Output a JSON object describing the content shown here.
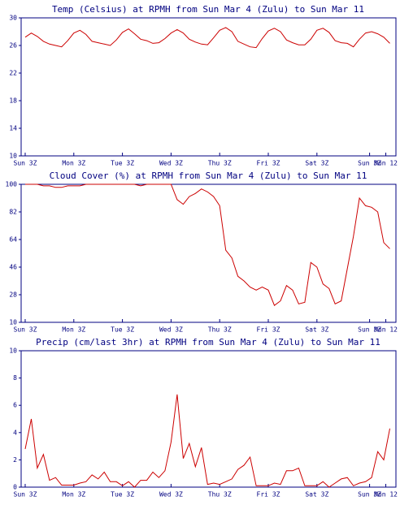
{
  "chart_data": [
    {
      "type": "line",
      "title": "Temp (Celsius) at RPMH from Sun Mar  4 (Zulu) to Sun Mar 11",
      "x": [
        0,
        3,
        6,
        9,
        12,
        15,
        18,
        21,
        24,
        27,
        30,
        33,
        36,
        39,
        42,
        45,
        48,
        51,
        54,
        57,
        60,
        63,
        66,
        69,
        72,
        75,
        78,
        81,
        84,
        87,
        90,
        93,
        96,
        99,
        102,
        105,
        108,
        111,
        114,
        117,
        120,
        123,
        126,
        129,
        132,
        135,
        138,
        141,
        144,
        147,
        150,
        153,
        156,
        159,
        162,
        165,
        168,
        171,
        174,
        177,
        180
      ],
      "series": [
        {
          "name": "Temp",
          "color": "#cc0000",
          "values": [
            27.2,
            27.8,
            27.3,
            26.6,
            26.2,
            26.0,
            25.8,
            26.7,
            27.8,
            28.2,
            27.6,
            26.6,
            26.4,
            26.2,
            26.0,
            26.8,
            27.9,
            28.4,
            27.7,
            26.9,
            26.7,
            26.3,
            26.4,
            27.0,
            27.8,
            28.3,
            27.8,
            26.9,
            26.5,
            26.2,
            26.1,
            27.1,
            28.2,
            28.6,
            28.0,
            26.6,
            26.2,
            25.8,
            25.7,
            27.0,
            28.1,
            28.5,
            28.0,
            26.8,
            26.4,
            26.1,
            26.1,
            26.9,
            28.2,
            28.5,
            27.9,
            26.7,
            26.4,
            26.3,
            25.8,
            26.9,
            27.8,
            28.0,
            27.7,
            27.2,
            26.3
          ]
        }
      ],
      "xlim": [
        -2,
        183
      ],
      "xticks": [
        {
          "value": 0,
          "label": "Sun 3Z"
        },
        {
          "value": 24,
          "label": "Mon 3Z"
        },
        {
          "value": 48,
          "label": "Tue 3Z"
        },
        {
          "value": 72,
          "label": "Wed 3Z"
        },
        {
          "value": 96,
          "label": "Thu 3Z"
        },
        {
          "value": 120,
          "label": "Fri 3Z"
        },
        {
          "value": 144,
          "label": "Sat 3Z"
        },
        {
          "value": 170,
          "label": "Sun 3Z"
        },
        {
          "value": 178,
          "label": "Mon 12"
        }
      ],
      "ylim": [
        10,
        30
      ],
      "yticks": [
        10,
        14,
        18,
        22,
        26,
        30
      ]
    },
    {
      "type": "line",
      "title": "Cloud Cover (%) at RPMH from Sun Mar  4 (Zulu) to Sun Mar 11",
      "x": [
        0,
        3,
        6,
        9,
        12,
        15,
        18,
        21,
        24,
        27,
        30,
        33,
        36,
        39,
        42,
        45,
        48,
        51,
        54,
        57,
        60,
        63,
        66,
        69,
        72,
        75,
        78,
        81,
        84,
        87,
        90,
        93,
        96,
        99,
        102,
        105,
        108,
        111,
        114,
        117,
        120,
        123,
        126,
        129,
        132,
        135,
        138,
        141,
        144,
        147,
        150,
        153,
        156,
        159,
        162,
        165,
        168,
        171,
        174,
        177,
        180
      ],
      "series": [
        {
          "name": "Cloud Cover",
          "color": "#cc0000",
          "values": [
            100,
            100,
            100,
            99,
            99,
            98,
            98,
            99,
            99,
            99,
            100,
            100,
            100,
            100,
            100,
            100,
            100,
            100,
            100,
            99,
            100,
            100,
            100,
            100,
            100,
            90,
            87,
            92,
            94,
            97,
            95,
            92,
            86,
            57,
            52,
            40,
            37,
            33,
            31,
            33,
            31,
            21,
            24,
            34,
            31,
            22,
            23,
            49,
            46,
            35,
            32,
            22,
            24,
            45,
            66,
            91,
            86,
            85,
            82,
            62,
            58
          ]
        }
      ],
      "xlim": [
        -2,
        183
      ],
      "xticks": [
        {
          "value": 0,
          "label": "Sun 3Z"
        },
        {
          "value": 24,
          "label": "Mon 3Z"
        },
        {
          "value": 48,
          "label": "Tue 3Z"
        },
        {
          "value": 72,
          "label": "Wed 3Z"
        },
        {
          "value": 96,
          "label": "Thu 3Z"
        },
        {
          "value": 120,
          "label": "Fri 3Z"
        },
        {
          "value": 144,
          "label": "Sat 3Z"
        },
        {
          "value": 170,
          "label": "Sun 3Z"
        },
        {
          "value": 178,
          "label": "Mon 12"
        }
      ],
      "ylim": [
        10,
        100
      ],
      "yticks": [
        10,
        28,
        46,
        64,
        82,
        100
      ]
    },
    {
      "type": "line",
      "title": "Precip (cm/last 3hr) at RPMH from Sun Mar  4 (Zulu) to Sun Mar 11",
      "x": [
        0,
        3,
        6,
        9,
        12,
        15,
        18,
        21,
        24,
        27,
        30,
        33,
        36,
        39,
        42,
        45,
        48,
        51,
        54,
        57,
        60,
        63,
        66,
        69,
        72,
        75,
        78,
        81,
        84,
        87,
        90,
        93,
        96,
        99,
        102,
        105,
        108,
        111,
        114,
        117,
        120,
        123,
        126,
        129,
        132,
        135,
        138,
        141,
        144,
        147,
        150,
        153,
        156,
        159,
        162,
        165,
        168,
        171,
        174,
        177,
        180
      ],
      "series": [
        {
          "name": "Precip",
          "color": "#cc0000",
          "values": [
            2.8,
            5.0,
            1.4,
            2.4,
            0.5,
            0.7,
            0.15,
            0.15,
            0.15,
            0.3,
            0.4,
            0.9,
            0.6,
            1.1,
            0.4,
            0.4,
            0.1,
            0.4,
            0.0,
            0.5,
            0.5,
            1.1,
            0.7,
            1.2,
            3.3,
            6.8,
            2.1,
            3.2,
            1.5,
            2.9,
            0.2,
            0.3,
            0.2,
            0.4,
            0.6,
            1.3,
            1.6,
            2.2,
            0.1,
            0.1,
            0.1,
            0.3,
            0.2,
            1.2,
            1.2,
            1.4,
            0.1,
            0.1,
            0.1,
            0.4,
            0.0,
            0.3,
            0.6,
            0.7,
            0.1,
            0.3,
            0.4,
            0.7,
            2.6,
            2.0,
            4.3
          ]
        }
      ],
      "xlim": [
        -2,
        183
      ],
      "xticks": [
        {
          "value": 0,
          "label": "Sun 3Z"
        },
        {
          "value": 24,
          "label": "Mon 3Z"
        },
        {
          "value": 48,
          "label": "Tue 3Z"
        },
        {
          "value": 72,
          "label": "Wed 3Z"
        },
        {
          "value": 96,
          "label": "Thu 3Z"
        },
        {
          "value": 120,
          "label": "Fri 3Z"
        },
        {
          "value": 144,
          "label": "Sat 3Z"
        },
        {
          "value": 170,
          "label": "Sun 3Z"
        },
        {
          "value": 178,
          "label": "Mon 12"
        }
      ],
      "ylim": [
        0,
        10
      ],
      "yticks": [
        0,
        2,
        4,
        6,
        8,
        10
      ]
    }
  ]
}
